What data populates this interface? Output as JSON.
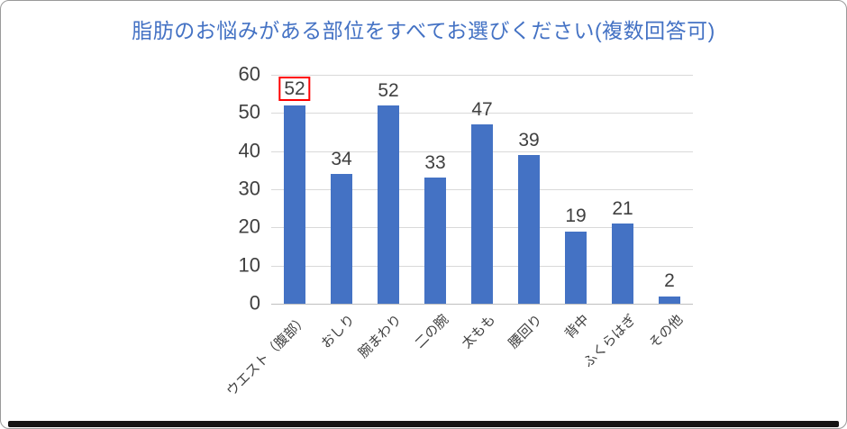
{
  "chart_data": {
    "type": "bar",
    "title": "脂肪のお悩みがある部位をすべてお選びください(複数回答可)",
    "categories": [
      "ウエスト（腹部）",
      "おしり",
      "腕まわり",
      "二の腕",
      "太もも",
      "腰回り",
      "背中",
      "ふくらはぎ",
      "その他"
    ],
    "values": [
      52,
      34,
      52,
      33,
      47,
      39,
      19,
      21,
      2
    ],
    "xlabel": "",
    "ylabel": "",
    "ylim": [
      0,
      60
    ],
    "yticks": [
      0,
      10,
      20,
      30,
      40,
      50,
      60
    ],
    "grid": true,
    "legend": "none",
    "data_labels": true,
    "bar_color": "#4472C4",
    "title_color": "#4472C4",
    "axis_text_color": "#404040",
    "highlighted_label_index": 0,
    "highlight_border_color": "#FF0000"
  }
}
